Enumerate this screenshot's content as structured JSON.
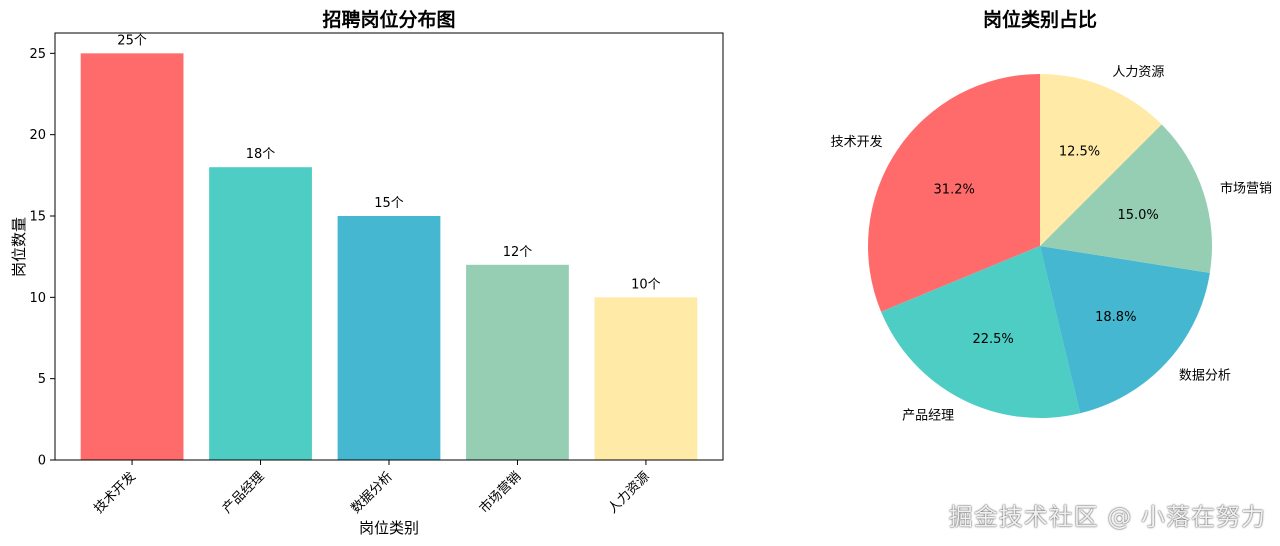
{
  "chart_data": [
    {
      "type": "bar",
      "title": "招聘岗位分布图",
      "xlabel": "岗位类别",
      "ylabel": "岗位数量",
      "categories": [
        "技术开发",
        "产品经理",
        "数据分析",
        "市场营销",
        "人力资源"
      ],
      "values": [
        25,
        18,
        15,
        12,
        10
      ],
      "value_labels": [
        "25个",
        "18个",
        "15个",
        "12个",
        "10个"
      ],
      "colors": [
        "#ff6b6b",
        "#4ecdc4",
        "#45b7d1",
        "#96ceb4",
        "#ffeaa7"
      ],
      "ylim": [
        0,
        26.25
      ],
      "yticks": [
        0,
        5,
        10,
        15,
        20,
        25
      ],
      "grid": false
    },
    {
      "type": "pie",
      "title": "岗位类别占比",
      "labels": [
        "技术开发",
        "产品经理",
        "数据分析",
        "市场营销",
        "人力资源"
      ],
      "values": [
        25,
        18,
        15,
        12,
        10
      ],
      "pct_labels": [
        "31.2%",
        "22.5%",
        "18.8%",
        "15.0%",
        "12.5%"
      ],
      "colors": [
        "#ff6b6b",
        "#4ecdc4",
        "#45b7d1",
        "#96ceb4",
        "#ffeaa7"
      ],
      "startangle": 90
    }
  ],
  "watermark": "掘金技术社区 @ 小落在努力"
}
